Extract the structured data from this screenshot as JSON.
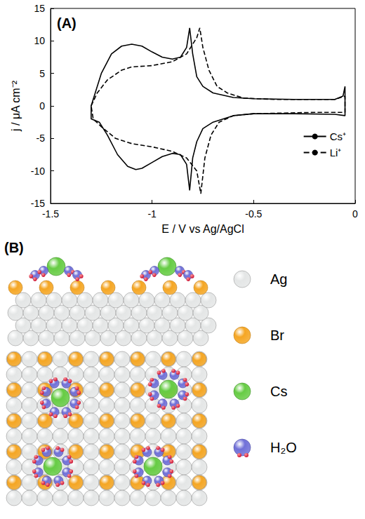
{
  "chart_data": {
    "type": "line",
    "title": "(A)",
    "x_label": "E / V vs Ag/AgCl",
    "y_label": "j / μA cm⁻²",
    "xlim": [
      -1.5,
      0
    ],
    "xticks": [
      -1.5,
      -1,
      -0.5,
      0
    ],
    "ylim": [
      -15,
      15
    ],
    "yticks": [
      -15,
      -10,
      -5,
      0,
      5,
      10,
      15
    ],
    "grid": false,
    "legend": "right",
    "series": [
      {
        "name": "Cs⁺",
        "color": "#000000",
        "line_style": "solid",
        "x": [
          -1.3,
          -1.28,
          -1.25,
          -1.2,
          -1.15,
          -1.1,
          -1.05,
          -1.0,
          -0.95,
          -0.9,
          -0.86,
          -0.83,
          -0.815,
          -0.8,
          -0.78,
          -0.75,
          -0.7,
          -0.6,
          -0.5,
          -0.3,
          -0.1,
          -0.06,
          -0.05,
          -0.05,
          -0.1,
          -0.3,
          -0.5,
          -0.6,
          -0.7,
          -0.75,
          -0.78,
          -0.8,
          -0.815,
          -0.83,
          -0.86,
          -0.9,
          -0.95,
          -1.0,
          -1.05,
          -1.08,
          -1.12,
          -1.17,
          -1.22,
          -1.26,
          -1.3,
          -1.3
        ],
        "values": [
          0,
          2,
          5,
          8,
          9.2,
          9.5,
          9.2,
          8.3,
          7.5,
          7.2,
          7.5,
          9,
          12,
          8,
          4.5,
          3,
          2,
          1.3,
          1.1,
          1,
          1,
          1.5,
          3,
          -1.5,
          -1.3,
          -1.2,
          -1.2,
          -1.5,
          -2.5,
          -3.5,
          -5.5,
          -8,
          -13,
          -9,
          -7.5,
          -7.3,
          -7.8,
          -8.7,
          -9.6,
          -9.8,
          -9.3,
          -7.5,
          -4.5,
          -2.5,
          -2,
          0
        ]
      },
      {
        "name": "Li⁺",
        "color": "#000000",
        "line_style": "dashed",
        "x": [
          -1.3,
          -1.27,
          -1.22,
          -1.15,
          -1.1,
          -1.0,
          -0.9,
          -0.83,
          -0.78,
          -0.765,
          -0.75,
          -0.72,
          -0.68,
          -0.63,
          -0.55,
          -0.4,
          -0.1,
          -0.05,
          -0.05,
          -0.2,
          -0.5,
          -0.6,
          -0.67,
          -0.71,
          -0.74,
          -0.76,
          -0.78,
          -0.83,
          -0.9,
          -1.0,
          -1.1,
          -1.18,
          -1.25,
          -1.29,
          -1.3
        ],
        "values": [
          0,
          2,
          4,
          5.5,
          6,
          6.2,
          6.8,
          8,
          10.5,
          12,
          9,
          5.5,
          3,
          2,
          1.2,
          1,
          1,
          1.5,
          -1,
          -1,
          -1.2,
          -1.5,
          -2.5,
          -4.5,
          -8,
          -13.5,
          -10,
          -8,
          -7,
          -6.3,
          -5.8,
          -5,
          -3.2,
          -2,
          0
        ]
      }
    ]
  },
  "diagram": {
    "label": "(B)",
    "legend": [
      {
        "name": "Ag",
        "color": "#e4e6e6"
      },
      {
        "name": "Br",
        "color": "#f5a623"
      },
      {
        "name": "Cs",
        "color": "#66cc44"
      },
      {
        "name": "H₂O",
        "color": "#7070d8"
      }
    ]
  }
}
